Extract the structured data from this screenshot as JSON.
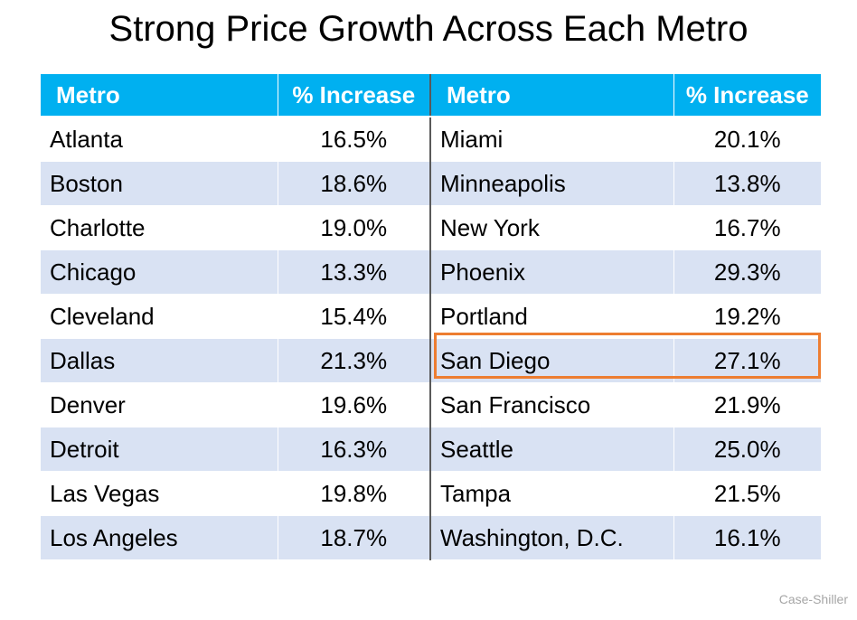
{
  "title": "Strong Price Growth Across Each Metro",
  "source": "Case-Shiller",
  "colors": {
    "header": "#00b0f0",
    "band": "#d9e2f3",
    "highlight": "#ed7d31"
  },
  "chart_data": {
    "type": "table",
    "title": "Strong Price Growth Across Each Metro",
    "columns": [
      "Metro",
      "% Increase",
      "Metro",
      "% Increase"
    ],
    "highlighted": "San Diego",
    "rows": [
      [
        "Atlanta",
        "16.5%",
        "Miami",
        "20.1%"
      ],
      [
        "Boston",
        "18.6%",
        "Minneapolis",
        "13.8%"
      ],
      [
        "Charlotte",
        "19.0%",
        "New York",
        "16.7%"
      ],
      [
        "Chicago",
        "13.3%",
        "Phoenix",
        "29.3%"
      ],
      [
        "Cleveland",
        "15.4%",
        "Portland",
        "19.2%"
      ],
      [
        "Dallas",
        "21.3%",
        "San Diego",
        "27.1%"
      ],
      [
        "Denver",
        "19.6%",
        "San Francisco",
        "21.9%"
      ],
      [
        "Detroit",
        "16.3%",
        "Seattle",
        "25.0%"
      ],
      [
        "Las Vegas",
        "19.8%",
        "Tampa",
        "21.5%"
      ],
      [
        "Los Angeles",
        "18.7%",
        "Washington, D.C.",
        "16.1%"
      ]
    ]
  }
}
